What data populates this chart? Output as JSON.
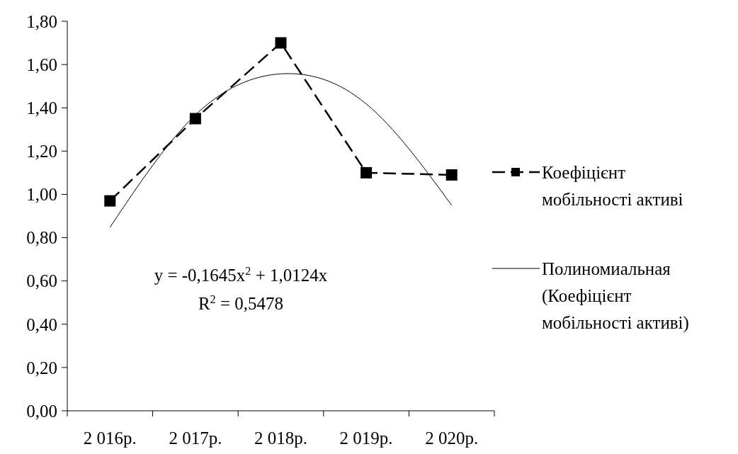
{
  "chart_data": {
    "type": "line",
    "categories": [
      "2 016р.",
      "2 017р.",
      "2 018р.",
      "2 019р.",
      "2 020р."
    ],
    "series": [
      {
        "name": "Коефіцієнт мобільності активі",
        "color": "#000000",
        "values": [
          0.97,
          1.35,
          1.7,
          1.1,
          1.09
        ],
        "marker": "square",
        "line_style": "dashed"
      },
      {
        "name": "Полиномиальная (Коефіцієнт мобільності активі)",
        "color": "#000000",
        "values": [
          0.848,
          1.367,
          1.557,
          1.418,
          0.95
        ],
        "marker": "none",
        "line_style": "solid"
      }
    ],
    "ylim": [
      0,
      1.8
    ],
    "yticks": [
      {
        "value": 0,
        "label": "0,00"
      },
      {
        "value": 0.2,
        "label": "0,20"
      },
      {
        "value": 0.4,
        "label": "0,40"
      },
      {
        "value": 0.6,
        "label": "0,60"
      },
      {
        "value": 0.8,
        "label": "0,80"
      },
      {
        "value": 1.0,
        "label": "1,00"
      },
      {
        "value": 1.2,
        "label": "1,20"
      },
      {
        "value": 1.4,
        "label": "1,40"
      },
      {
        "value": 1.6,
        "label": "1,60"
      },
      {
        "value": 1.8,
        "label": "1,80"
      }
    ],
    "annotations": [
      "y = -0,1645x$^{2}$ + 1,0124x",
      "R$^{2}$ = 0,5478"
    ],
    "grid": false,
    "legend": "right"
  }
}
